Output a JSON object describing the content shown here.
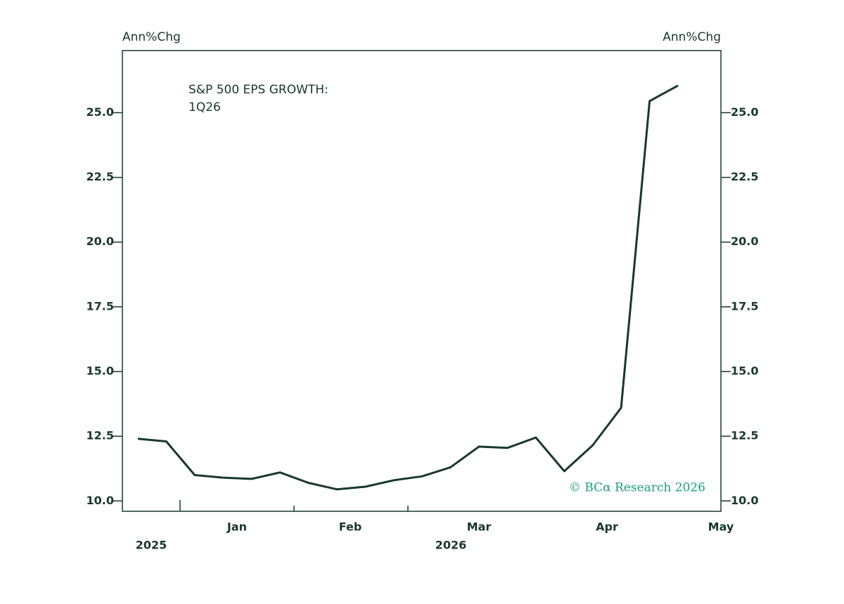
{
  "chart_data": {
    "type": "line",
    "title": "S&P 500 EPS GROWTH:",
    "subtitle": "1Q26",
    "y_label": "Ann%Chg",
    "y2_label": "Ann%Chg",
    "annotation": "© BCα Research 2026",
    "month_labels": [
      "Jan",
      "Feb",
      "Mar",
      "Apr",
      "May"
    ],
    "year_labels": [
      "2025",
      "2026"
    ],
    "series": [
      {
        "name": "S&P 500 EPS growth",
        "color": "#17382f",
        "values": [
          12.4,
          12.3,
          11.0,
          10.9,
          10.85,
          11.1,
          10.7,
          10.45,
          10.55,
          10.8,
          10.95,
          11.3,
          12.1,
          12.05,
          12.45,
          11.15,
          12.15,
          13.6,
          25.45,
          26.05
        ]
      }
    ],
    "ylim": [
      9.6,
      27.4
    ],
    "yticks": [
      {
        "value": 10,
        "label": "10.0"
      },
      12.5,
      {
        "value": 15,
        "label": "15.0"
      },
      17.5,
      {
        "value": 20,
        "label": "20.0"
      },
      22.5,
      {
        "value": 25,
        "label": "25.0"
      }
    ],
    "grid": false
  }
}
